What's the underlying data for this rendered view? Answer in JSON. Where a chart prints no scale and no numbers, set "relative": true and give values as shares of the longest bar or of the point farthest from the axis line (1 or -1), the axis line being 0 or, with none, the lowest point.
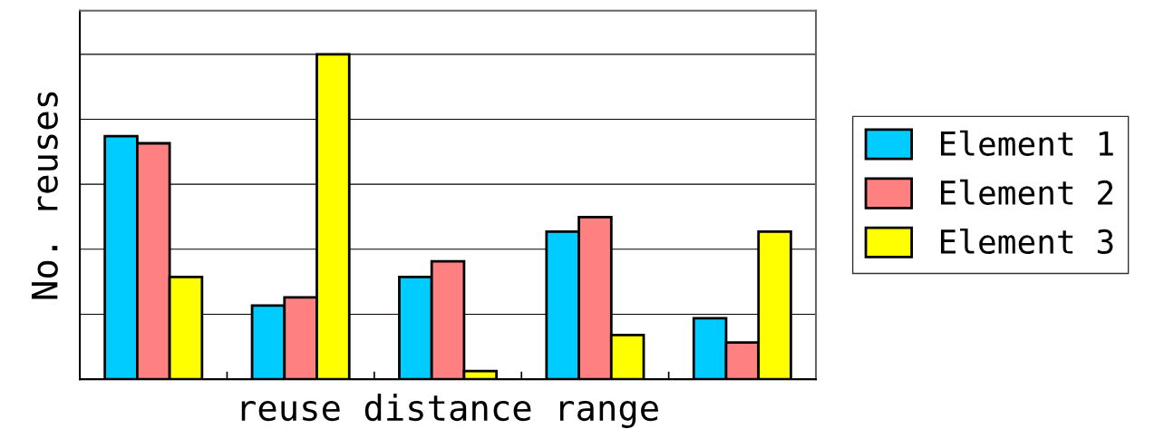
{
  "chart_data": {
    "type": "bar",
    "relative": true,
    "xlabel": "reuse distance range",
    "ylabel": "No. reuses",
    "categories": [
      null,
      null,
      null,
      null,
      null
    ],
    "series": [
      {
        "name": "Element 1",
        "color": "#00ccff",
        "values": [
          0.748,
          0.227,
          0.315,
          0.454,
          0.188
        ]
      },
      {
        "name": "Element 2",
        "color": "#ff8080",
        "values": [
          0.726,
          0.252,
          0.363,
          0.499,
          0.113
        ]
      },
      {
        "name": "Element 3",
        "color": "#ffff00",
        "values": [
          0.315,
          1,
          0.025,
          0.136,
          0.454
        ]
      }
    ],
    "grid": "y",
    "legend": "right"
  }
}
